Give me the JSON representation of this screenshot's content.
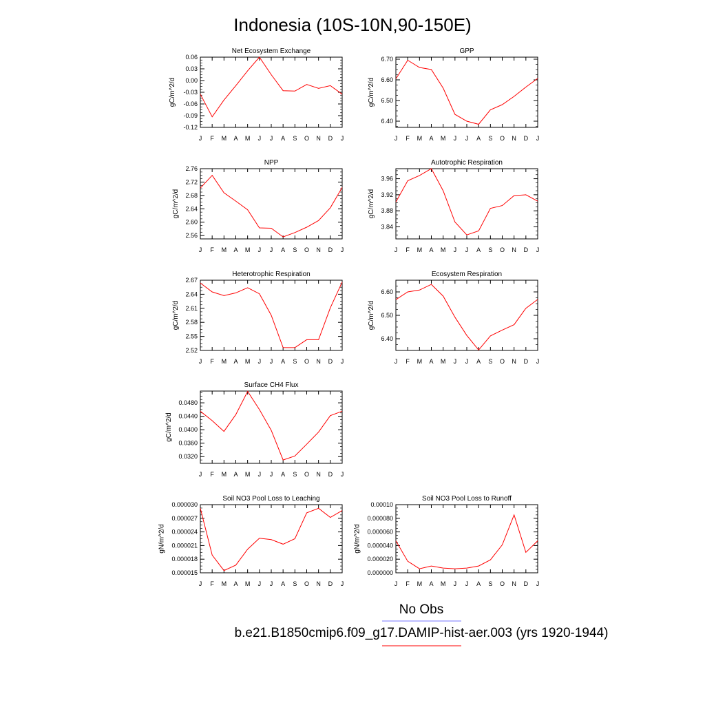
{
  "figure": {
    "title": "Indonesia (10S-10N,90-150E)"
  },
  "legend": {
    "items": [
      {
        "label": "No Obs",
        "color": "#7777ff"
      },
      {
        "label": "b.e21.B1850cmip6.f09_g17.DAMIP-hist-aer.003 (yrs 1920-1944)",
        "color": "#ff0000"
      }
    ]
  },
  "chart_data": [
    {
      "type": "line",
      "title": "Net Ecosystem Exchange",
      "ylabel": "gC/m^2/d",
      "x": [
        "J",
        "F",
        "M",
        "A",
        "M",
        "J",
        "J",
        "A",
        "S",
        "O",
        "N",
        "D",
        "J"
      ],
      "ylim": [
        -0.12,
        0.06
      ],
      "yticks": [
        "0.06",
        "0.03",
        "0.00",
        "-0.03",
        "-0.06",
        "-0.09",
        "-0.12"
      ],
      "grid": false,
      "series": [
        {
          "values": [
            -0.035,
            -0.093,
            -0.05,
            -0.013,
            0.025,
            0.06,
            0.015,
            -0.026,
            -0.027,
            -0.01,
            -0.02,
            -0.013,
            -0.035
          ],
          "color": "#ff0000"
        }
      ]
    },
    {
      "type": "line",
      "title": "GPP",
      "ylabel": "gC/m^2/d",
      "x": [
        "J",
        "F",
        "M",
        "A",
        "M",
        "J",
        "J",
        "A",
        "S",
        "O",
        "N",
        "D",
        "J"
      ],
      "ylim": [
        6.37,
        6.71
      ],
      "yticks": [
        "6.70",
        "6.60",
        "6.50",
        "6.40"
      ],
      "grid": false,
      "series": [
        {
          "values": [
            6.605,
            6.695,
            6.66,
            6.65,
            6.56,
            6.433,
            6.4,
            6.385,
            6.455,
            6.48,
            6.52,
            6.565,
            6.607
          ],
          "color": "#ff0000"
        }
      ]
    },
    {
      "type": "line",
      "title": "NPP",
      "ylabel": "gC/m^2/d",
      "x": [
        "J",
        "F",
        "M",
        "A",
        "M",
        "J",
        "J",
        "A",
        "S",
        "O",
        "N",
        "D",
        "J"
      ],
      "ylim": [
        2.55,
        2.76
      ],
      "yticks": [
        "2.76",
        "2.72",
        "2.68",
        "2.64",
        "2.60",
        "2.56"
      ],
      "grid": false,
      "series": [
        {
          "values": [
            2.702,
            2.74,
            2.688,
            2.663,
            2.637,
            2.583,
            2.582,
            2.556,
            2.569,
            2.585,
            2.605,
            2.643,
            2.704
          ],
          "color": "#ff0000"
        }
      ]
    },
    {
      "type": "line",
      "title": "Autotrophic Respiration",
      "ylabel": "gC/m^2/d",
      "x": [
        "J",
        "F",
        "M",
        "A",
        "M",
        "J",
        "J",
        "A",
        "S",
        "O",
        "N",
        "D",
        "J"
      ],
      "ylim": [
        3.81,
        3.985
      ],
      "yticks": [
        "3.96",
        "3.92",
        "3.88",
        "3.84"
      ],
      "grid": false,
      "series": [
        {
          "values": [
            3.902,
            3.955,
            3.968,
            3.985,
            3.93,
            3.852,
            3.82,
            3.83,
            3.886,
            3.893,
            3.918,
            3.92,
            3.904
          ],
          "color": "#ff0000"
        }
      ]
    },
    {
      "type": "line",
      "title": "Heterotrophic Respiration",
      "ylabel": "gC/m^2/d",
      "x": [
        "J",
        "F",
        "M",
        "A",
        "M",
        "J",
        "J",
        "A",
        "S",
        "O",
        "N",
        "D",
        "J"
      ],
      "ylim": [
        2.52,
        2.67
      ],
      "yticks": [
        "2.67",
        "2.64",
        "2.61",
        "2.58",
        "2.55",
        "2.52"
      ],
      "grid": false,
      "series": [
        {
          "values": [
            2.664,
            2.645,
            2.637,
            2.643,
            2.654,
            2.641,
            2.595,
            2.526,
            2.526,
            2.543,
            2.543,
            2.611,
            2.666
          ],
          "color": "#ff0000"
        }
      ]
    },
    {
      "type": "line",
      "title": "Ecosystem Respiration",
      "ylabel": "gC/m^2/d",
      "x": [
        "J",
        "F",
        "M",
        "A",
        "M",
        "J",
        "J",
        "A",
        "S",
        "O",
        "N",
        "D",
        "J"
      ],
      "ylim": [
        6.35,
        6.65
      ],
      "yticks": [
        "6.60",
        "6.50",
        "6.40"
      ],
      "grid": false,
      "series": [
        {
          "values": [
            6.567,
            6.6,
            6.608,
            6.632,
            6.582,
            6.492,
            6.414,
            6.352,
            6.412,
            6.437,
            6.46,
            6.53,
            6.568
          ],
          "color": "#ff0000"
        }
      ]
    },
    {
      "type": "line",
      "title": "Surface CH4 Flux",
      "ylabel": "gC/m^2/d",
      "x": [
        "J",
        "F",
        "M",
        "A",
        "M",
        "J",
        "J",
        "A",
        "S",
        "O",
        "N",
        "D",
        "J"
      ],
      "ylim": [
        0.03,
        0.0515
      ],
      "yticks": [
        "0.0480",
        "0.0440",
        "0.0400",
        "0.0360",
        "0.0320"
      ],
      "grid": false,
      "series": [
        {
          "values": [
            0.0455,
            0.0427,
            0.0395,
            0.0445,
            0.0514,
            0.046,
            0.0398,
            0.031,
            0.0322,
            0.0357,
            0.0393,
            0.0442,
            0.0455
          ],
          "color": "#ff0000"
        }
      ]
    },
    {
      "type": "line",
      "title": "Soil NO3 Pool Loss to Leaching",
      "ylabel": "gN/m^2/d",
      "x": [
        "J",
        "F",
        "M",
        "A",
        "M",
        "J",
        "J",
        "A",
        "S",
        "O",
        "N",
        "D",
        "J"
      ],
      "ylim": [
        1.5e-05,
        3e-05
      ],
      "yticks": [
        "0.000030",
        "0.000027",
        "0.000024",
        "0.000021",
        "0.000018",
        "0.000015"
      ],
      "grid": false,
      "series": [
        {
          "values": [
            2.92e-05,
            1.89e-05,
            1.55e-05,
            1.67e-05,
            2.02e-05,
            2.26e-05,
            2.23e-05,
            2.13e-05,
            2.25e-05,
            2.82e-05,
            2.92e-05,
            2.72e-05,
            2.87e-05
          ],
          "color": "#ff0000"
        }
      ]
    },
    {
      "type": "line",
      "title": "Soil NO3 Pool Loss to Runoff",
      "ylabel": "gN/m^2/d",
      "x": [
        "J",
        "F",
        "M",
        "A",
        "M",
        "J",
        "J",
        "A",
        "S",
        "O",
        "N",
        "D",
        "J"
      ],
      "ylim": [
        0,
        0.0001
      ],
      "yticks": [
        "0.00010",
        "0.000080",
        "0.000060",
        "0.000040",
        "0.000020",
        "0.000000"
      ],
      "grid": false,
      "series": [
        {
          "values": [
            4.7e-05,
            1.7e-05,
            6e-06,
            1e-05,
            7e-06,
            6e-06,
            7e-06,
            1e-05,
            1.9e-05,
            4.1e-05,
            8.5e-05,
            3e-05,
            4.7e-05
          ],
          "color": "#ff0000"
        }
      ]
    }
  ]
}
